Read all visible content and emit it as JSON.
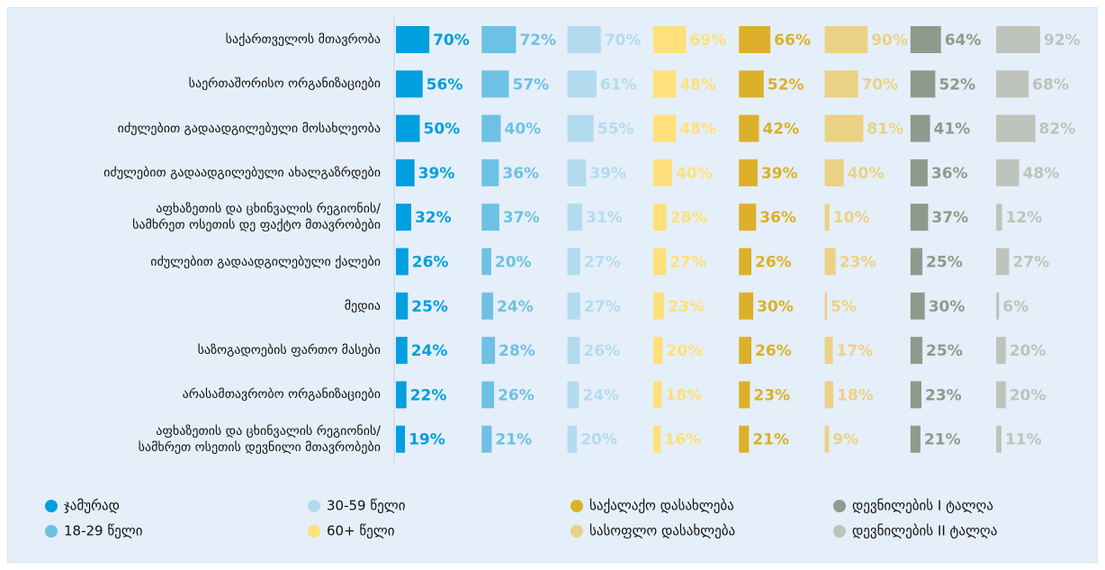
{
  "chart_data": {
    "type": "bar",
    "categories": [
      "საქართველოს მთავრობა",
      "საერთაშორისო ორგანიზაციები",
      "იძულებით გადაადგილებული მოსახლეობა",
      "იძულებით გადაადგილებული ახალგაზრდები",
      "აფხაზეთის და ცხინვალის რეგიონის/\nსამხრეთ  ოსეთის დე ფაქტო მთავრობები",
      "იძულებით გადაადგილებული ქალები",
      "მედია",
      "საზოგადოების ფართო მასები",
      "არასამთავრობო ორგანიზაციები",
      "აფხაზეთის და ცხინვალის რეგიონის/\nსამხრეთ ოსეთის დევნილი მთავრობები"
    ],
    "series": [
      {
        "name": "ჯამურად",
        "color": "#009fdf",
        "values": [
          70,
          56,
          50,
          39,
          32,
          26,
          25,
          24,
          22,
          19
        ],
        "value_labels": [
          "70%",
          "56%",
          "50%",
          "39%",
          "32%",
          "26%",
          "25%",
          "24%",
          "22%",
          "19%"
        ]
      },
      {
        "name": "18-29 წელი",
        "color": "#6ec1e4",
        "values": [
          72,
          57,
          40,
          36,
          37,
          20,
          24,
          28,
          26,
          21
        ],
        "value_labels": [
          "72%",
          "57%",
          "40%",
          "36%",
          "37%",
          "20%",
          "24%",
          "28%",
          "26%",
          "21%"
        ]
      },
      {
        "name": "30-59 წელი",
        "color": "#b3dbef",
        "values": [
          70,
          61,
          55,
          39,
          31,
          27,
          27,
          26,
          24,
          20
        ],
        "value_labels": [
          "70%",
          "61%",
          "55%",
          "39%",
          "31%",
          "27%",
          "27%",
          "26%",
          "24%",
          "20%"
        ]
      },
      {
        "name": "60+ წელი",
        "color": "#ffe07a",
        "values": [
          69,
          48,
          48,
          40,
          28,
          27,
          23,
          20,
          18,
          16
        ],
        "value_labels": [
          "69%",
          "48%",
          "48%",
          "40%",
          "28%",
          "27%",
          "23%",
          "20%",
          "18%",
          "16%"
        ]
      },
      {
        "name": "საქალაქო დასახლება",
        "color": "#dcb02a",
        "values": [
          66,
          52,
          42,
          39,
          36,
          26,
          30,
          26,
          23,
          21
        ],
        "value_labels": [
          "66%",
          "52%",
          "42%",
          "39%",
          "36%",
          "26%",
          "30%",
          "26%",
          "23%",
          "21%"
        ]
      },
      {
        "name": "სასოფლო დასახლება",
        "color": "#ebd184",
        "values": [
          90,
          70,
          81,
          40,
          10,
          23,
          5,
          17,
          18,
          9
        ],
        "value_labels": [
          "90%",
          "70%",
          "81%",
          "40%",
          "10%",
          "23%",
          "5%",
          "17%",
          "18%",
          "9%"
        ]
      },
      {
        "name": "დევნილების I ტალღა",
        "color": "#8f9a8c",
        "values": [
          64,
          52,
          41,
          36,
          37,
          25,
          30,
          25,
          23,
          21
        ],
        "value_labels": [
          "64%",
          "52%",
          "41%",
          "36%",
          "37%",
          "25%",
          "30%",
          "25%",
          "23%",
          "21%"
        ]
      },
      {
        "name": "დევნილების II ტალღა",
        "color": "#bec3bb",
        "values": [
          92,
          68,
          82,
          48,
          12,
          27,
          6,
          20,
          20,
          11
        ],
        "value_labels": [
          "92%",
          "68%",
          "82%",
          "48%",
          "12%",
          "27%",
          "6%",
          "20%",
          "20%",
          "11%"
        ]
      }
    ],
    "legend": "bottom"
  }
}
